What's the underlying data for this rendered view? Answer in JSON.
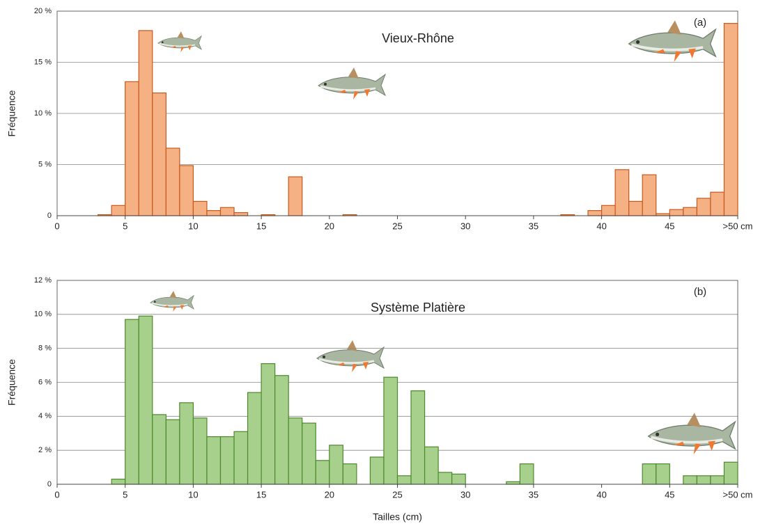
{
  "chart_data": [
    {
      "type": "histogram",
      "title": "Vieux-Rhône",
      "annotation": "(a)",
      "ylabel": "Fréquence",
      "bins": [
        0,
        1,
        2,
        3,
        4,
        5,
        6,
        7,
        8,
        9,
        10,
        11,
        12,
        13,
        14,
        15,
        16,
        17,
        18,
        19,
        20,
        21,
        22,
        23,
        24,
        25,
        26,
        27,
        28,
        29,
        30,
        31,
        32,
        33,
        34,
        35,
        36,
        37,
        38,
        39,
        40,
        41,
        42,
        43,
        44,
        45,
        46,
        47,
        48,
        49,
        50
      ],
      "values": [
        0,
        0,
        0,
        0.1,
        1.0,
        13.1,
        18.1,
        12.0,
        6.6,
        4.9,
        1.4,
        0.5,
        0.8,
        0.3,
        0,
        0.1,
        0,
        3.8,
        0,
        0,
        0,
        0.1,
        0,
        0,
        0,
        0,
        0,
        0,
        0,
        0,
        0,
        0,
        0,
        0,
        0,
        0,
        0,
        0.1,
        0,
        0.5,
        1.0,
        4.5,
        1.4,
        4.0,
        0.2,
        0.6,
        0.8,
        1.7,
        2.3,
        18.8
      ],
      "color": "#f5b084",
      "edgecolor": "#c8581c",
      "xlim": [
        0,
        50
      ],
      "xticks": [
        0,
        5,
        10,
        15,
        20,
        25,
        30,
        35,
        40,
        45,
        {
          "value": 50,
          "label": ">50 cm"
        }
      ],
      "ylim": [
        0,
        20
      ],
      "yticks": [
        0,
        {
          "value": 5,
          "label": "5 %"
        },
        {
          "value": 10,
          "label": "10 %"
        },
        {
          "value": 15,
          "label": "15 %"
        },
        {
          "value": 20,
          "label": "20 %"
        }
      ],
      "grid": true
    },
    {
      "type": "histogram",
      "title": "Système Platière",
      "annotation": "(b)",
      "ylabel": "Fréquence",
      "xlabel": "Tailles (cm)",
      "bins": [
        0,
        1,
        2,
        3,
        4,
        5,
        6,
        7,
        8,
        9,
        10,
        11,
        12,
        13,
        14,
        15,
        16,
        17,
        18,
        19,
        20,
        21,
        22,
        23,
        24,
        25,
        26,
        27,
        28,
        29,
        30,
        31,
        32,
        33,
        34,
        35,
        36,
        37,
        38,
        39,
        40,
        41,
        42,
        43,
        44,
        45,
        46,
        47,
        48,
        49,
        50
      ],
      "values": [
        0,
        0,
        0,
        0,
        0.3,
        9.7,
        9.9,
        4.1,
        3.8,
        4.8,
        3.9,
        2.8,
        2.8,
        3.1,
        5.4,
        7.1,
        6.4,
        3.9,
        3.6,
        1.4,
        2.3,
        1.2,
        0,
        1.6,
        6.3,
        0.5,
        5.5,
        2.2,
        0.7,
        0.6,
        0,
        0,
        0,
        0.15,
        1.2,
        0,
        0,
        0,
        0,
        0,
        0,
        0,
        0,
        1.2,
        1.2,
        0,
        0.5,
        0.5,
        0.5,
        1.3
      ],
      "color": "#a8d08d",
      "edgecolor": "#4a8a2a",
      "xlim": [
        0,
        50
      ],
      "xticks": [
        0,
        5,
        10,
        15,
        20,
        25,
        30,
        35,
        40,
        45,
        {
          "value": 50,
          "label": ">50 cm"
        }
      ],
      "ylim": [
        0,
        12
      ],
      "yticks": [
        0,
        {
          "value": 2,
          "label": "2 %"
        },
        {
          "value": 4,
          "label": "4 %"
        },
        {
          "value": 6,
          "label": "6 %"
        },
        {
          "value": 8,
          "label": "8 %"
        },
        {
          "value": 10,
          "label": "10 %"
        },
        {
          "value": 12,
          "label": "12 %"
        }
      ],
      "grid": true
    }
  ]
}
